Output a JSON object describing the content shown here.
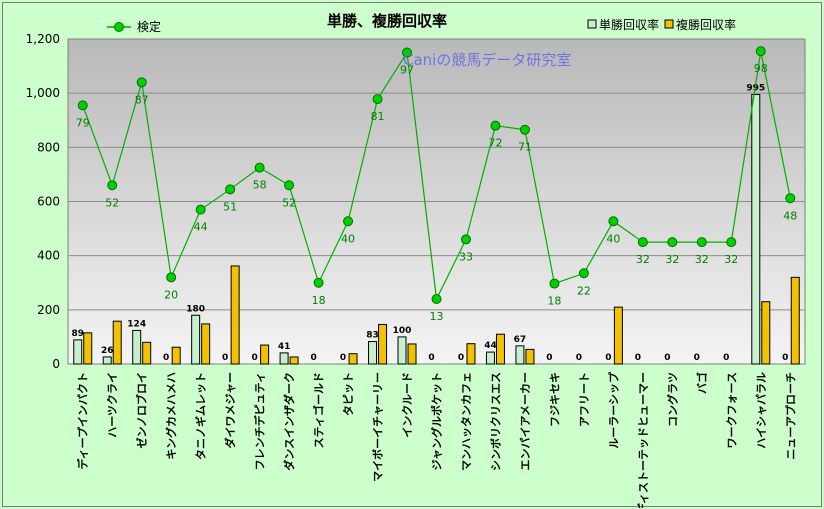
{
  "chart_data": {
    "type": "bar",
    "title": "単勝、複勝回収率",
    "watermark": "Caniの競馬データ研究室",
    "xlabel": "",
    "ylabel": "",
    "ylim": [
      0,
      1200
    ],
    "yticks": [
      "0",
      "200",
      "400",
      "600",
      "800",
      "1,000",
      "1,200"
    ],
    "grid": true,
    "legend_placement": "top",
    "categories": [
      "ディープインパクト",
      "ハーツクライ",
      "ゼンノロブロイ",
      "キングカメハメハ",
      "タニノギムレット",
      "ダイワメジャー",
      "フレンチデピュティ",
      "ダンスインザダーク",
      "スティゴールド",
      "タピット",
      "マイボーイチャーリー",
      "インクルード",
      "ジャングルポケット",
      "マンハッタンカフェ",
      "シンボリクリスエス",
      "エンパイアメーカー",
      "フジキセキ",
      "アフリート",
      "ルーラーシップ",
      "ディストーテッドヒューマー",
      "コングラツ",
      "バゴ",
      "ワークフォース",
      "ハイシャパラル",
      "ニューアプローチ"
    ],
    "series": [
      {
        "name": "単勝回収率",
        "type": "bar",
        "color": "#c6efce",
        "values": [
          89,
          26,
          124,
          0,
          180,
          0,
          0,
          41,
          0,
          0,
          83,
          100,
          0,
          0,
          44,
          67,
          0,
          0,
          0,
          0,
          0,
          0,
          0,
          995,
          0
        ]
      },
      {
        "name": "複勝回収率",
        "type": "bar",
        "color": "#f2c200",
        "values": [
          115,
          158,
          80,
          62,
          148,
          362,
          70,
          26,
          0,
          38,
          146,
          74,
          0,
          75,
          110,
          54,
          0,
          0,
          210,
          0,
          0,
          0,
          0,
          230,
          320
        ]
      },
      {
        "name": "検定",
        "type": "line",
        "color": "#00b000",
        "values": [
          955,
          660,
          1040,
          320,
          570,
          645,
          725,
          660,
          300,
          527,
          978,
          1150,
          240,
          460,
          880,
          865,
          297,
          335,
          527,
          450,
          450,
          450,
          450,
          1155,
          612
        ],
        "labels": [
          79,
          52,
          87,
          20,
          44,
          51,
          58,
          52,
          18,
          40,
          81,
          97,
          13,
          33,
          72,
          71,
          18,
          22,
          40,
          32,
          32,
          32,
          32,
          98,
          48
        ]
      }
    ],
    "colors": {
      "plot_top": "#b9b9b9",
      "plot_bottom": "#f4f4f4",
      "page_bg": "#ccffcc",
      "line": "#00b000",
      "line_label": "#008000",
      "watermark": "#6a6ae8"
    }
  }
}
